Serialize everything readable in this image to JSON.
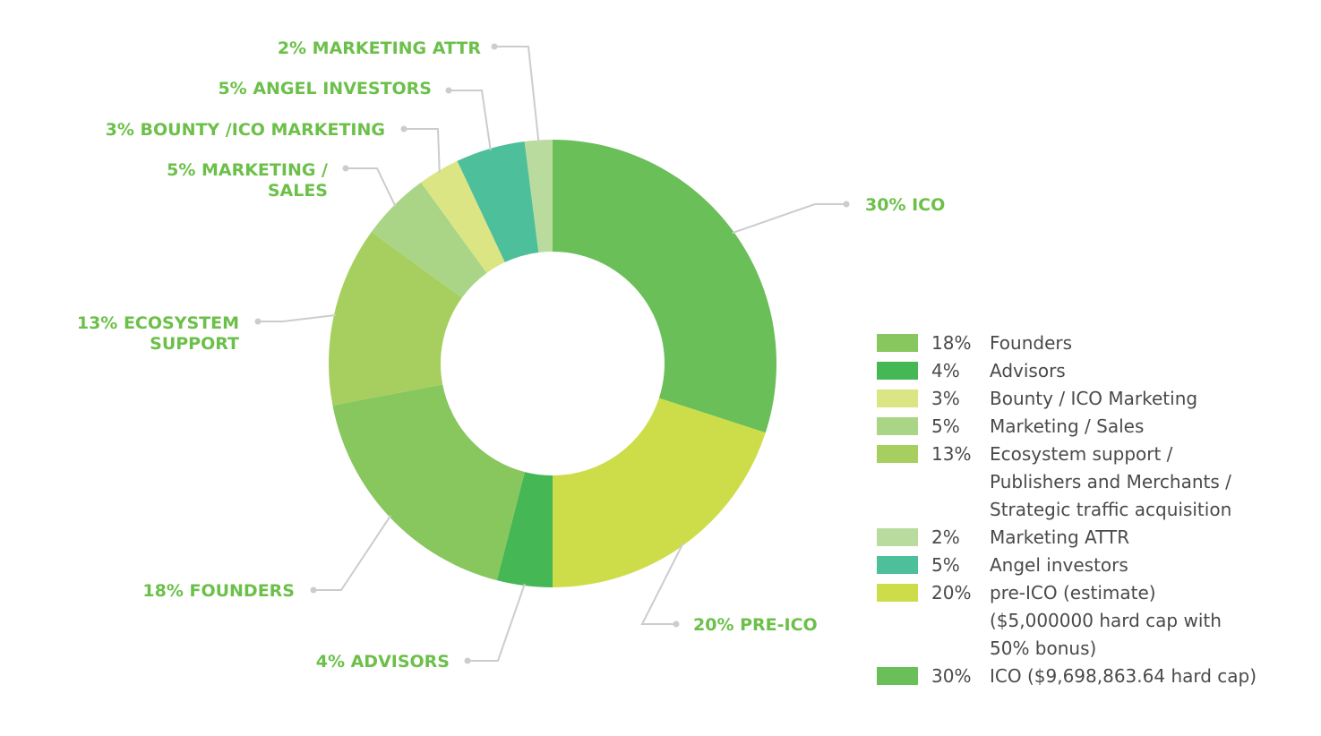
{
  "chart_data": {
    "type": "pie",
    "variant": "donut",
    "title": "",
    "slices": [
      {
        "name": "ICO",
        "value": 30,
        "color": "#6abf59",
        "label_lines": [
          "30% ICO"
        ]
      },
      {
        "name": "PRE-ICO",
        "value": 20,
        "color": "#cddd4a",
        "label_lines": [
          "20%  PRE-ICO"
        ]
      },
      {
        "name": "ADVISORS",
        "value": 4,
        "color": "#46b755",
        "label_lines": [
          "4%  ADVISORS"
        ]
      },
      {
        "name": "FOUNDERS",
        "value": 18,
        "color": "#88c65e",
        "label_lines": [
          "18%  FOUNDERS"
        ]
      },
      {
        "name": "ECOSYSTEM SUPPORT",
        "value": 13,
        "color": "#a6cf5f",
        "label_lines": [
          "13%  ECOSYSTEM",
          "SUPPORT"
        ]
      },
      {
        "name": "MARKETING / SALES",
        "value": 5,
        "color": "#aad587",
        "label_lines": [
          "5%  MARKETING /",
          "SALES"
        ]
      },
      {
        "name": "BOUNTY /ICO MARKETING",
        "value": 3,
        "color": "#dbe583",
        "label_lines": [
          "3%  BOUNTY /ICO MARKETING"
        ]
      },
      {
        "name": "ANGEL INVESTORS",
        "value": 5,
        "color": "#4dbf9a",
        "label_lines": [
          "5%  ANGEL INVESTORS"
        ]
      },
      {
        "name": "MARKETING ATTR",
        "value": 2,
        "color": "#b9dc9e",
        "label_lines": [
          "2%  MARKETING ATTR"
        ]
      }
    ],
    "legend": {
      "placement": "right",
      "items": [
        {
          "pct": "18%",
          "lines": [
            "Founders"
          ],
          "color": "#88c65e"
        },
        {
          "pct": "4%",
          "lines": [
            "Advisors"
          ],
          "color": "#46b755"
        },
        {
          "pct": "3%",
          "lines": [
            "Bounty / ICO Marketing"
          ],
          "color": "#dbe583"
        },
        {
          "pct": "5%",
          "lines": [
            "Marketing / Sales"
          ],
          "color": "#aad587"
        },
        {
          "pct": "13%",
          "lines": [
            "Ecosystem support /",
            "Publishers and Merchants /",
            "Strategic traffic acquisition"
          ],
          "color": "#a6cf5f"
        },
        {
          "pct": "2%",
          "lines": [
            "Marketing ATTR"
          ],
          "color": "#b9dc9e"
        },
        {
          "pct": "5%",
          "lines": [
            "Angel investors"
          ],
          "color": "#4dbf9a"
        },
        {
          "pct": "20%",
          "lines": [
            "pre-ICO (estimate)",
            "($5,000000 hard cap with",
            "50% bonus)"
          ],
          "color": "#cddd4a"
        },
        {
          "pct": "30%",
          "lines": [
            "ICO ($9,698,863.64 hard cap)"
          ],
          "color": "#6abf59"
        }
      ]
    }
  },
  "colors": {
    "label_text": "#6cc04a",
    "leader_line": "#cccccc",
    "legend_text": "#4a4a4a"
  }
}
